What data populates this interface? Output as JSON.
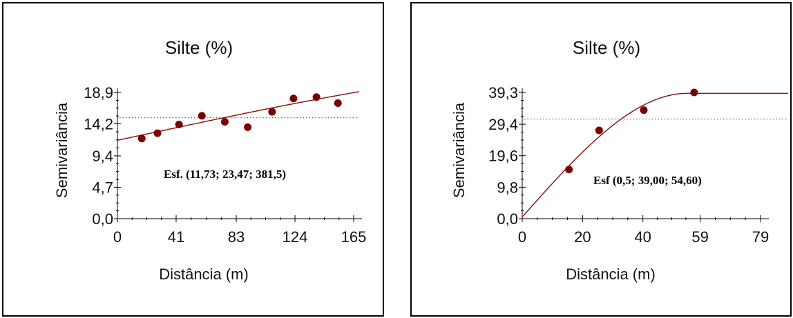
{
  "chart_data": [
    {
      "type": "scatter",
      "title": "Silte (%)",
      "xlabel": "Distância (m)",
      "ylabel": "Semivariância",
      "annotation": "Esf. (11,73; 23,47; 381,5)",
      "xlim": [
        0,
        165
      ],
      "ylim": [
        0,
        18.9
      ],
      "xticks": [
        "0",
        "41",
        "83",
        "124",
        "165"
      ],
      "yticks": [
        "0,0",
        "4,7",
        "9,4",
        "14,2",
        "18,9"
      ],
      "xtick_values": [
        0,
        41,
        83,
        124,
        165
      ],
      "ytick_values": [
        0,
        4.7,
        9.4,
        14.2,
        18.9
      ],
      "sill_line": 15.1,
      "series": [
        {
          "points": [
            {
              "x": 17,
              "y": 12.0
            },
            {
              "x": 28,
              "y": 12.8
            },
            {
              "x": 43,
              "y": 14.1
            },
            {
              "x": 59,
              "y": 15.4
            },
            {
              "x": 75,
              "y": 14.5
            },
            {
              "x": 91,
              "y": 13.7
            },
            {
              "x": 108,
              "y": 16.0
            },
            {
              "x": 123,
              "y": 18.0
            },
            {
              "x": 139,
              "y": 18.2
            },
            {
              "x": 154,
              "y": 17.3
            }
          ]
        }
      ],
      "model": {
        "kind": "spherical",
        "nugget": 11.73,
        "sill": 23.47,
        "range": 381.5
      }
    },
    {
      "type": "scatter",
      "title": "Silte (%)",
      "xlabel": "Distância (m)",
      "ylabel": "Semivariância",
      "annotation": "Esf (0,5; 39,00; 54,60)",
      "xlim": [
        0,
        79
      ],
      "ylim": [
        0,
        39.3
      ],
      "xticks": [
        "0",
        "20",
        "40",
        "59",
        "79"
      ],
      "yticks": [
        "0,0",
        "9,8",
        "19,6",
        "29,4",
        "39,3"
      ],
      "xtick_values": [
        0,
        20,
        40,
        59,
        79
      ],
      "ytick_values": [
        0,
        9.8,
        19.6,
        29.4,
        39.3
      ],
      "sill_line": 31.0,
      "series": [
        {
          "points": [
            {
              "x": 15.5,
              "y": 15.3
            },
            {
              "x": 25.5,
              "y": 27.5
            },
            {
              "x": 40.3,
              "y": 33.8
            },
            {
              "x": 57,
              "y": 39.3
            }
          ]
        }
      ],
      "model": {
        "kind": "spherical",
        "nugget": 0.5,
        "sill": 39.0,
        "range": 54.6
      }
    }
  ]
}
